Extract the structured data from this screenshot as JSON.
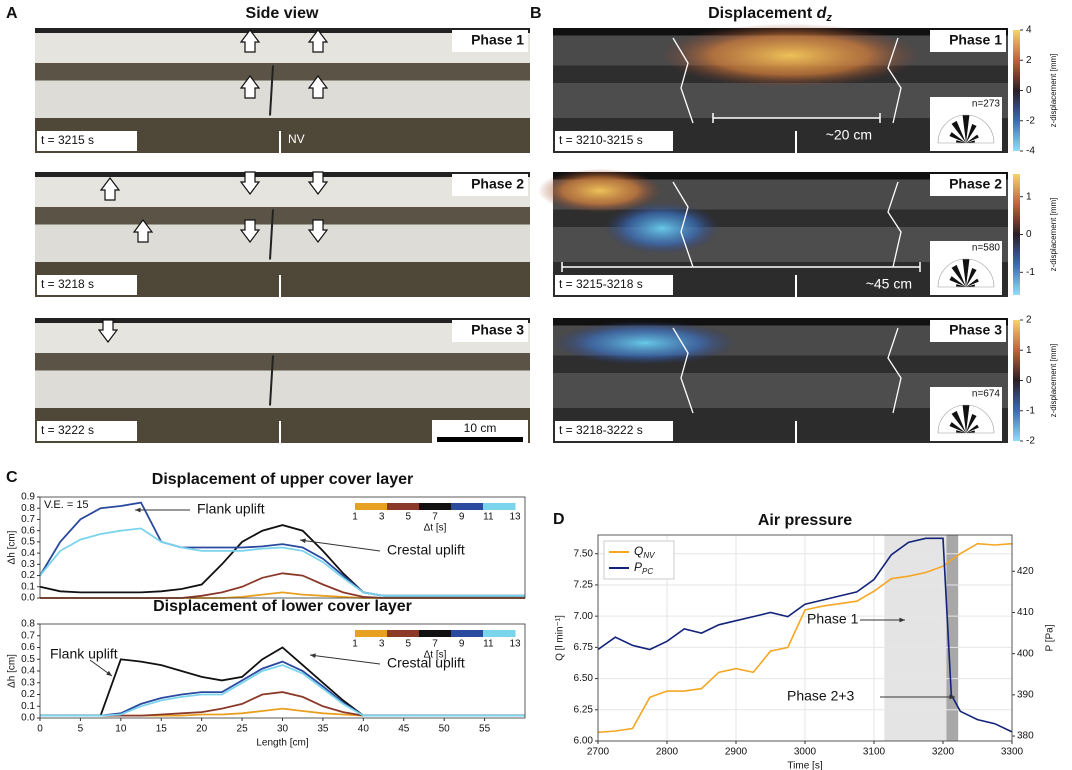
{
  "panel_labels": [
    "A",
    "B",
    "C",
    "D"
  ],
  "side_view": {
    "title": "Side view",
    "phases": [
      {
        "label": "Phase 1",
        "time": "t = 3215 s"
      },
      {
        "label": "Phase 2",
        "time": "t = 3218 s"
      },
      {
        "label": "Phase 3",
        "time": "t = 3222 s"
      }
    ],
    "nv": "NV",
    "scale": "10 cm"
  },
  "displacement": {
    "title": "Displacement",
    "title_var": "d",
    "title_sub": "z",
    "cb_label": "z-displacement [mm]",
    "phases": [
      {
        "label": "Phase 1",
        "time": "t = 3210-3215 s",
        "n": "n=273",
        "span": "~20 cm",
        "cbticks": [
          4,
          2,
          0,
          -2,
          -4
        ],
        "cblim": [
          -4,
          4
        ]
      },
      {
        "label": "Phase 2",
        "time": "t = 3215-3218 s",
        "n": "n=580",
        "span": "~45 cm",
        "cbticks": [
          1,
          0,
          -1
        ],
        "cblim": [
          -1.6,
          1.6
        ]
      },
      {
        "label": "Phase 3",
        "time": "t = 3218-3222 s",
        "n": "n=674",
        "cbticks": [
          2,
          1,
          0,
          -1,
          -2
        ],
        "cblim": [
          -2,
          2
        ]
      }
    ]
  },
  "chart_data": [
    {
      "type": "line",
      "title": "Displacement of upper cover layer",
      "ylabel": "Δh [cm]",
      "annotations": [
        "V.E. = 15",
        "Flank uplift",
        "Crestal uplift"
      ],
      "x": [
        0,
        2.5,
        5,
        7.5,
        10,
        12.5,
        15,
        17.5,
        20,
        22.5,
        25,
        27.5,
        30,
        32.5,
        35,
        37.5,
        40,
        42.5,
        45,
        47.5,
        50,
        52.5,
        55,
        57.5,
        60
      ],
      "xlim": [
        0,
        60
      ],
      "ylim": [
        0,
        0.9
      ],
      "yticks": [
        {
          "value": 0,
          "label": "0.0"
        },
        0.1,
        0.2,
        0.3,
        0.4,
        0.5,
        0.6,
        0.7,
        0.8,
        0.9
      ],
      "colorbar": {
        "label": "Δt [s]",
        "ticks": [
          1,
          3,
          5,
          7,
          9,
          11,
          13
        ],
        "lim": [
          1,
          13
        ],
        "colors": [
          "#e8a020",
          "#8b3a2a",
          "#111111",
          "#2a4aa0",
          "#7ad4ec"
        ]
      },
      "series": [
        {
          "color": "#e8a020",
          "values": [
            0,
            0,
            0,
            0,
            0,
            0,
            0,
            0,
            0,
            0,
            0.01,
            0.03,
            0.05,
            0.03,
            0.02,
            0.01,
            0,
            0,
            0,
            0,
            0,
            0,
            0,
            0,
            0
          ]
        },
        {
          "color": "#8b3a2a",
          "values": [
            0,
            0,
            0,
            0,
            0,
            0,
            0,
            0,
            0.02,
            0.05,
            0.1,
            0.18,
            0.22,
            0.2,
            0.12,
            0.05,
            0.01,
            0,
            0,
            0,
            0,
            0,
            0,
            0,
            0
          ]
        },
        {
          "color": "#111111",
          "values": [
            0.1,
            0.06,
            0.05,
            0.05,
            0.05,
            0.05,
            0.06,
            0.08,
            0.12,
            0.3,
            0.5,
            0.6,
            0.65,
            0.6,
            0.42,
            0.22,
            0.05,
            0.02,
            0.02,
            0.02,
            0.02,
            0.02,
            0.02,
            0.02,
            0.02
          ]
        },
        {
          "color": "#2a4aa0",
          "values": [
            0.2,
            0.5,
            0.7,
            0.8,
            0.82,
            0.85,
            0.5,
            0.45,
            0.45,
            0.45,
            0.45,
            0.46,
            0.48,
            0.45,
            0.35,
            0.2,
            0.05,
            0.02,
            0.02,
            0.02,
            0.02,
            0.02,
            0.02,
            0.02,
            0.02
          ]
        },
        {
          "color": "#7ad4ec",
          "values": [
            0.2,
            0.42,
            0.52,
            0.57,
            0.6,
            0.62,
            0.5,
            0.45,
            0.42,
            0.42,
            0.42,
            0.44,
            0.45,
            0.42,
            0.32,
            0.18,
            0.05,
            0.02,
            0.02,
            0.02,
            0.02,
            0.02,
            0.02,
            0.02,
            0.02
          ]
        }
      ]
    },
    {
      "type": "line",
      "title": "Displacement of lower cover layer",
      "xlabel": "Length [cm]",
      "ylabel": "Δh [cm]",
      "annotations": [
        "Flank uplift",
        "Crestal uplift"
      ],
      "x": [
        0,
        2.5,
        5,
        7.5,
        10,
        12.5,
        15,
        17.5,
        20,
        22.5,
        25,
        27.5,
        30,
        32.5,
        35,
        37.5,
        40,
        42.5,
        45,
        47.5,
        50,
        52.5,
        55,
        57.5,
        60
      ],
      "xlim": [
        0,
        60
      ],
      "xticks": [
        0,
        5,
        10,
        15,
        20,
        25,
        30,
        35,
        40,
        45,
        50,
        55
      ],
      "ylim": [
        0,
        0.8
      ],
      "yticks": [
        {
          "value": 0,
          "label": "0.0"
        },
        0.1,
        0.2,
        0.3,
        0.4,
        0.5,
        0.6,
        0.7,
        0.8
      ],
      "colorbar": {
        "label": "Δt [s]",
        "ticks": [
          1,
          3,
          5,
          7,
          9,
          11,
          13
        ],
        "lim": [
          1,
          13
        ],
        "colors": [
          "#e8a020",
          "#8b3a2a",
          "#111111",
          "#2a4aa0",
          "#7ad4ec"
        ]
      },
      "series": [
        {
          "color": "#e8a020",
          "values": [
            0.02,
            0.02,
            0.02,
            0.02,
            0.02,
            0.02,
            0.02,
            0.02,
            0.03,
            0.03,
            0.04,
            0.06,
            0.08,
            0.06,
            0.04,
            0.03,
            0.02,
            0.02,
            0.02,
            0.02,
            0.02,
            0.02,
            0.02,
            0.02,
            0.02
          ]
        },
        {
          "color": "#8b3a2a",
          "values": [
            0.02,
            0.02,
            0.02,
            0.02,
            0.02,
            0.02,
            0.03,
            0.04,
            0.05,
            0.08,
            0.12,
            0.2,
            0.22,
            0.18,
            0.1,
            0.05,
            0.02,
            0.02,
            0.02,
            0.02,
            0.02,
            0.02,
            0.02,
            0.02,
            0.02
          ]
        },
        {
          "color": "#111111",
          "values": [
            0.02,
            0.02,
            0.02,
            0.02,
            0.5,
            0.48,
            0.45,
            0.4,
            0.35,
            0.32,
            0.35,
            0.5,
            0.6,
            0.45,
            0.3,
            0.15,
            0.02,
            0.02,
            0.02,
            0.02,
            0.02,
            0.02,
            0.02,
            0.02,
            0.02
          ]
        },
        {
          "color": "#2a4aa0",
          "values": [
            0.02,
            0.02,
            0.02,
            0.02,
            0.04,
            0.12,
            0.17,
            0.2,
            0.22,
            0.22,
            0.32,
            0.42,
            0.48,
            0.4,
            0.27,
            0.13,
            0.02,
            0.02,
            0.02,
            0.02,
            0.02,
            0.02,
            0.02,
            0.02,
            0.02
          ]
        },
        {
          "color": "#7ad4ec",
          "values": [
            0.02,
            0.02,
            0.02,
            0.02,
            0.03,
            0.1,
            0.15,
            0.18,
            0.2,
            0.2,
            0.3,
            0.4,
            0.45,
            0.38,
            0.25,
            0.12,
            0.02,
            0.02,
            0.02,
            0.02,
            0.02,
            0.02,
            0.02,
            0.02,
            0.02
          ]
        }
      ]
    },
    {
      "type": "line",
      "title": "Air pressure",
      "xlabel": "Time [s]",
      "ylabel": "Q [l min⁻¹]",
      "y2label": "P [Pa]",
      "annotations": [
        "Phase 1",
        "Phase 2+3"
      ],
      "grid": true,
      "legend": "upper left",
      "spans": [
        {
          "from": 3115,
          "to": 3205,
          "color": "#e4e4e4"
        },
        {
          "from": 3205,
          "to": 3222,
          "color": "#a8a8a8"
        }
      ],
      "x": [
        2700,
        2725,
        2750,
        2775,
        2800,
        2825,
        2850,
        2875,
        2900,
        2925,
        2950,
        2975,
        3000,
        3025,
        3050,
        3075,
        3100,
        3125,
        3150,
        3175,
        3200,
        3212,
        3225,
        3250,
        3275,
        3300
      ],
      "xlim": [
        2700,
        3300
      ],
      "xticks": [
        2700,
        2800,
        2900,
        3000,
        3100,
        3200,
        3300
      ],
      "ylim": [
        6.0,
        7.65
      ],
      "yticks": [
        {
          "value": 6,
          "label": "6.00"
        },
        6.25,
        {
          "value": 6.5,
          "label": "6.50"
        },
        6.75,
        {
          "value": 7,
          "label": "7.00"
        },
        7.25,
        {
          "value": 7.5,
          "label": "7.50"
        }
      ],
      "y2lim": [
        378.8,
        428.8
      ],
      "y2ticks": [
        380,
        390,
        400,
        410,
        420
      ],
      "series": [
        {
          "name": "Q",
          "subscript": "NV",
          "color": "#f5a623",
          "values": [
            6.07,
            6.08,
            6.1,
            6.35,
            6.4,
            6.4,
            6.42,
            6.55,
            6.58,
            6.55,
            6.72,
            6.75,
            7.05,
            7.08,
            7.1,
            7.12,
            7.2,
            7.3,
            7.32,
            7.35,
            7.4,
            7.45,
            7.5,
            7.58,
            7.57,
            7.58
          ]
        },
        {
          "name": "P",
          "subscript": "PC",
          "color": "#13237a",
          "axis": "y2",
          "values": [
            401,
            404,
            402,
            401,
            403,
            406,
            405,
            407,
            408,
            409,
            410,
            409,
            412,
            413,
            414,
            415,
            418,
            424,
            427,
            428,
            428,
            390,
            386,
            384,
            383,
            381
          ]
        }
      ]
    }
  ]
}
